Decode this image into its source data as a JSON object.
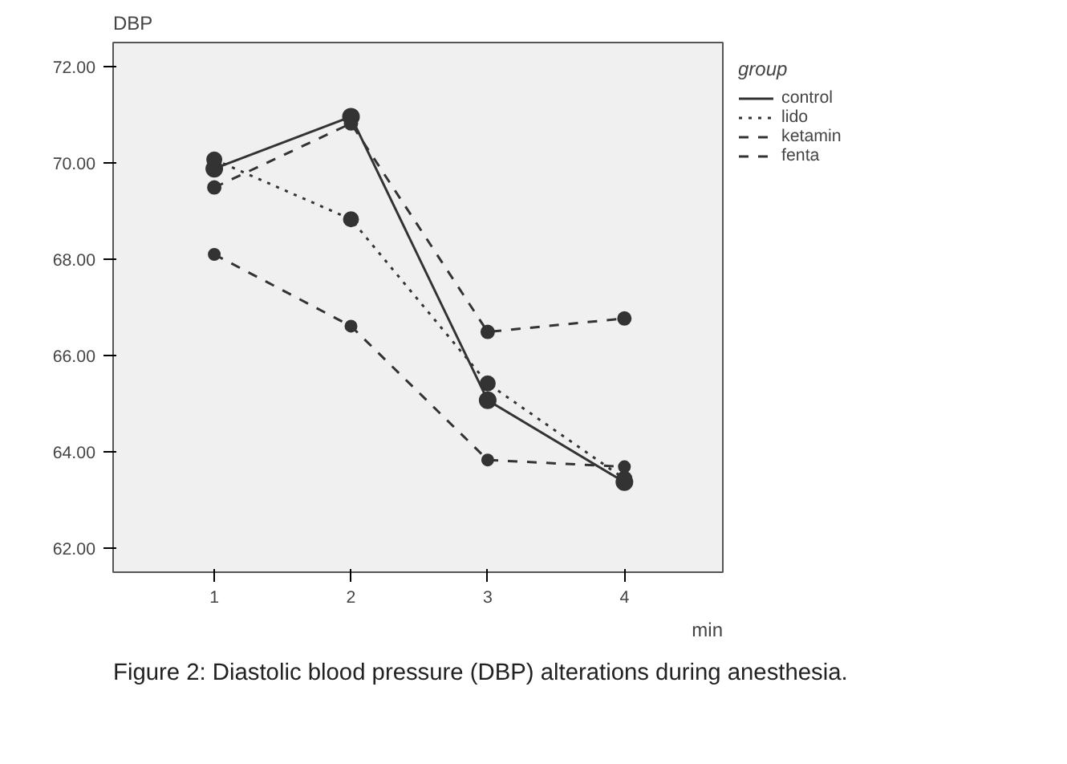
{
  "chart_data": {
    "type": "line",
    "xlabel": "min",
    "ylabel": "DBP",
    "legend_title": "group",
    "x": [
      1,
      2,
      3,
      4
    ],
    "series": [
      {
        "name": "control",
        "color": "#333333",
        "line_style": "solid",
        "values": [
          69.88,
          70.96,
          65.07,
          63.37
        ]
      },
      {
        "name": "lido",
        "color": "#333333",
        "line_style": "dotted",
        "values": [
          70.07,
          68.83,
          65.42,
          63.44
        ]
      },
      {
        "name": "ketamin",
        "color": "#333333",
        "line_style": "dashed",
        "values": [
          69.49,
          70.82,
          66.49,
          66.77
        ]
      },
      {
        "name": "fenta",
        "color": "#333333",
        "line_style": "dashed",
        "values": [
          68.1,
          66.61,
          63.83,
          63.69
        ]
      }
    ],
    "xlim": [
      0.26,
      4.72
    ],
    "ylim": [
      61.5,
      72.5
    ],
    "xticks": [
      1,
      2,
      3,
      4
    ],
    "yticks": [
      {
        "value": 62,
        "label": "62.00"
      },
      {
        "value": 64,
        "label": "64.00"
      },
      {
        "value": 66,
        "label": "66.00"
      },
      {
        "value": 68,
        "label": "68.00"
      },
      {
        "value": 70,
        "label": "70.00"
      },
      {
        "value": 72,
        "label": "72.00"
      }
    ],
    "marker": "circle",
    "grid": false,
    "legend": "top right",
    "annotations": [
      "Figure 2: Diastolic blood pressure (DBP) alterations during anesthesia."
    ]
  }
}
